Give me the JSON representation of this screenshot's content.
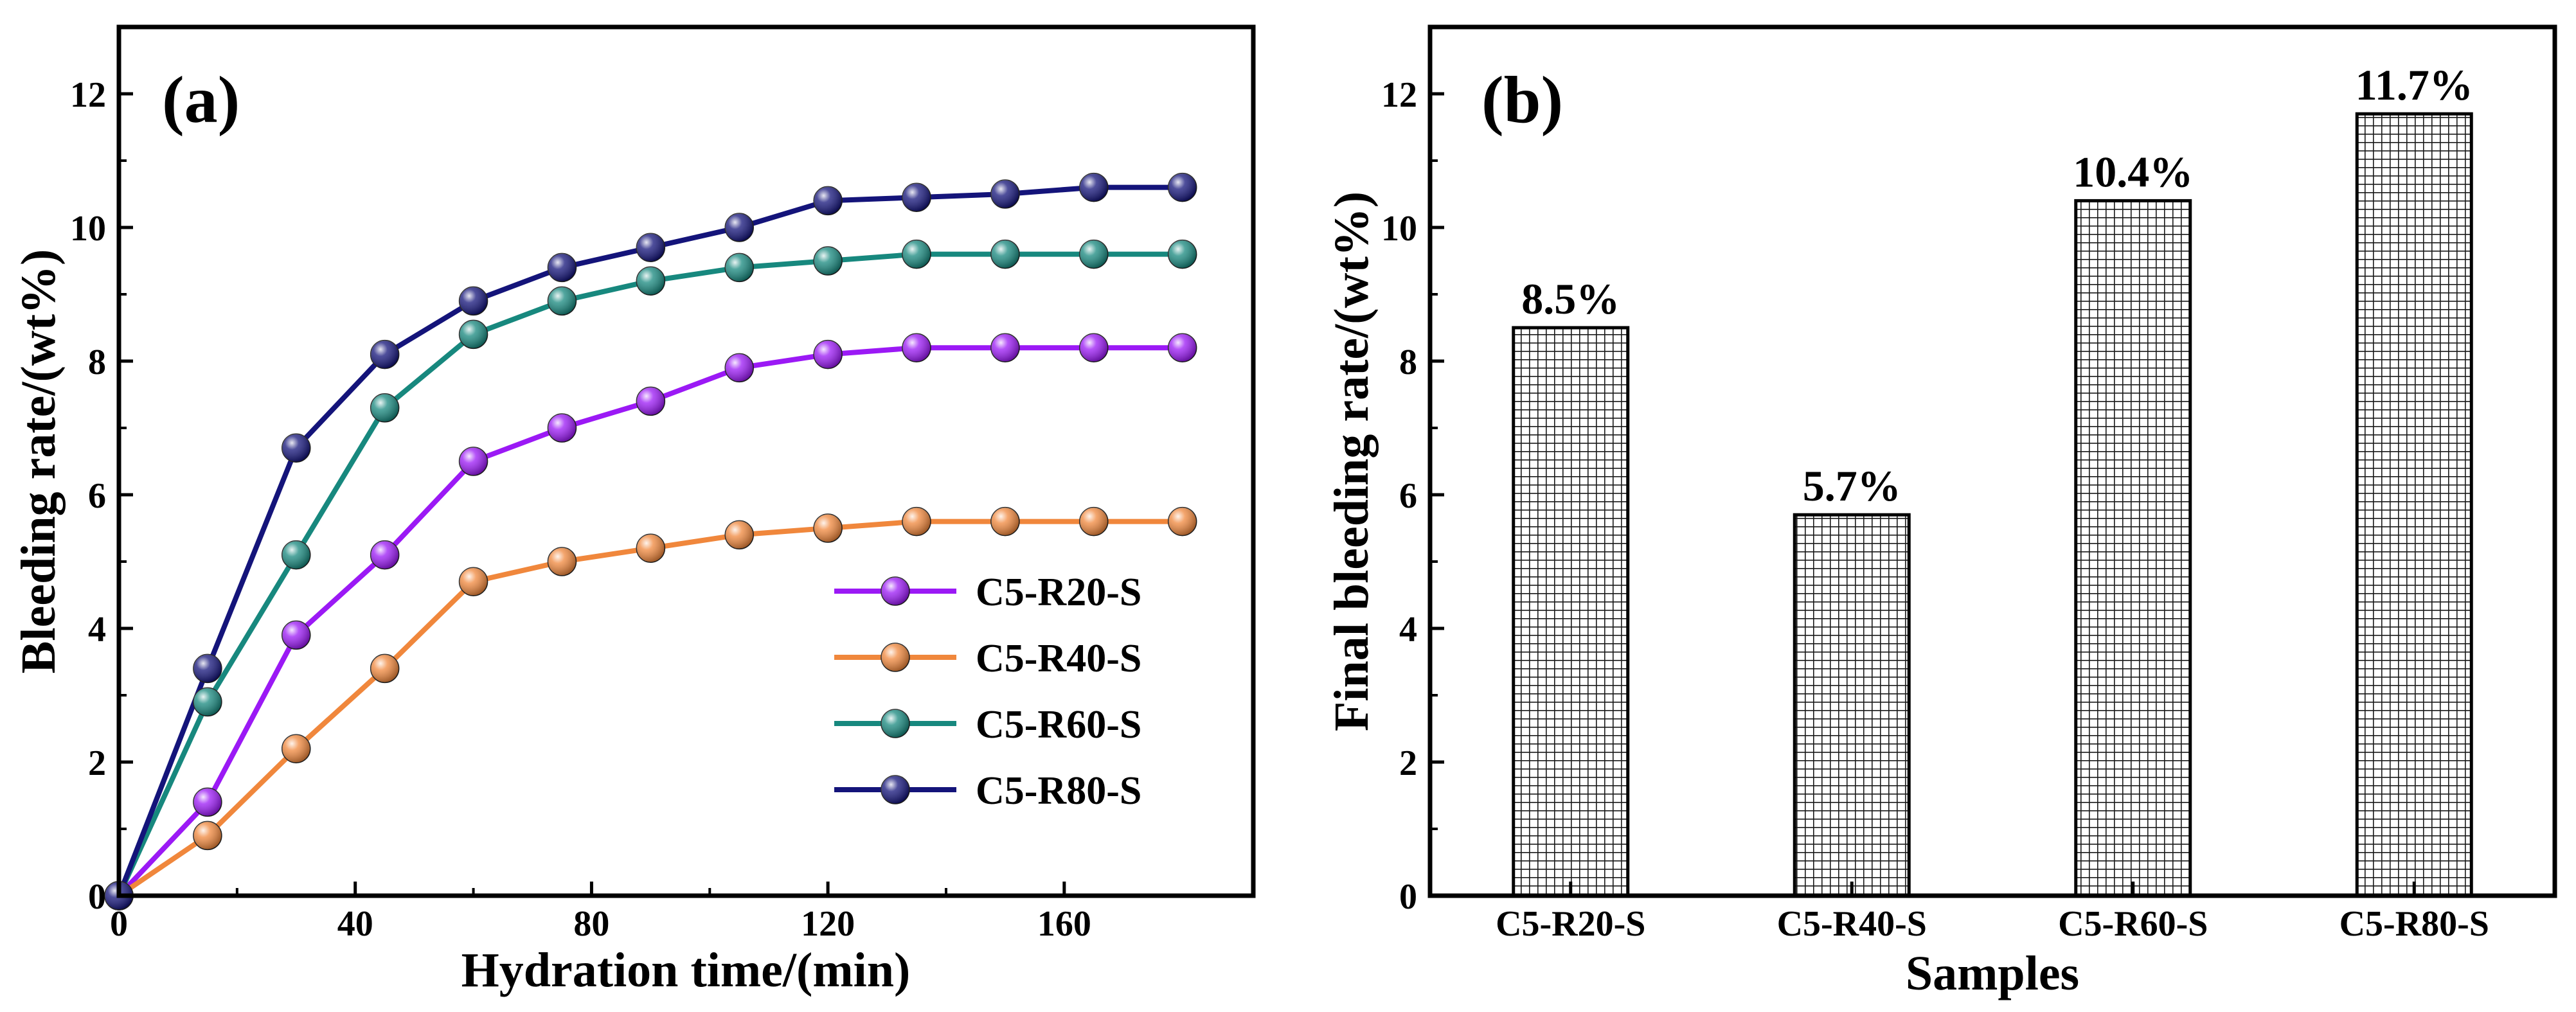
{
  "chart_data": [
    {
      "type": "line",
      "panel_label": "(a)",
      "title": "",
      "xlabel": "Hydration time/(min)",
      "ylabel": "Bleeding rate/(wt%)",
      "xlim": [
        0,
        192
      ],
      "ylim": [
        0,
        13
      ],
      "xticks": [
        0,
        40,
        80,
        120,
        160
      ],
      "yticks": [
        0,
        2,
        4,
        6,
        8,
        10,
        12
      ],
      "grid": false,
      "legend": "center-right",
      "x": [
        0,
        15,
        30,
        45,
        60,
        75,
        90,
        105,
        120,
        135,
        150,
        165,
        180
      ],
      "series": [
        {
          "name": "C5-R20-S",
          "color": "#9b19f5",
          "values": [
            0,
            1.4,
            3.9,
            5.1,
            6.5,
            7.0,
            7.4,
            7.9,
            8.1,
            8.2,
            8.2,
            8.2,
            8.2
          ]
        },
        {
          "name": "C5-R40-S",
          "color": "#f0873c",
          "values": [
            0,
            0.9,
            2.2,
            3.4,
            4.7,
            5.0,
            5.2,
            5.4,
            5.5,
            5.6,
            5.6,
            5.6,
            5.6
          ]
        },
        {
          "name": "C5-R60-S",
          "color": "#17887e",
          "values": [
            0,
            2.9,
            5.1,
            7.3,
            8.4,
            8.9,
            9.2,
            9.4,
            9.5,
            9.6,
            9.6,
            9.6,
            9.6
          ]
        },
        {
          "name": "C5-R80-S",
          "color": "#14147a",
          "values": [
            0,
            3.4,
            6.7,
            8.1,
            8.9,
            9.4,
            9.7,
            10.0,
            10.4,
            10.45,
            10.5,
            10.6,
            10.6
          ]
        }
      ]
    },
    {
      "type": "bar",
      "panel_label": "(b)",
      "title": "",
      "xlabel": "Samples",
      "ylabel": "Final bleeding rate/(wt%)",
      "ylim": [
        0,
        13
      ],
      "yticks": [
        0,
        2,
        4,
        6,
        8,
        10,
        12
      ],
      "grid": false,
      "categories": [
        "C5-R20-S",
        "C5-R40-S",
        "C5-R60-S",
        "C5-R80-S"
      ],
      "values": [
        8.5,
        5.7,
        10.4,
        11.7
      ],
      "data_labels": [
        "8.5%",
        "5.7%",
        "10.4%",
        "11.7%"
      ]
    }
  ]
}
